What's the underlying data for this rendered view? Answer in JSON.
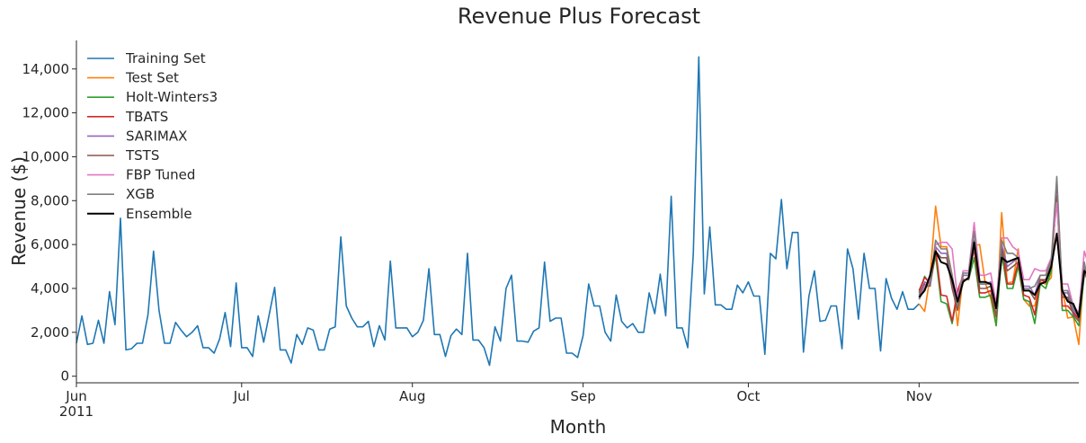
{
  "chart_data": {
    "type": "line",
    "title": "Revenue Plus Forecast",
    "xlabel": "Month",
    "ylabel": "Revenue ($)",
    "x_range": [
      "2011-06-01",
      "2011-11-30"
    ],
    "ylim": [
      -300,
      15300
    ],
    "yticks": [
      0,
      2000,
      4000,
      6000,
      8000,
      10000,
      12000,
      14000
    ],
    "ytick_labels": [
      "0",
      "2,000",
      "4,000",
      "6,000",
      "8,000",
      "10,000",
      "12,000",
      "14,000"
    ],
    "xticks": [
      {
        "date": "2011-06-01",
        "label": "Jun",
        "sublabel": "2011"
      },
      {
        "date": "2011-07-01",
        "label": "Jul",
        "sublabel": ""
      },
      {
        "date": "2011-08-01",
        "label": "Aug",
        "sublabel": ""
      },
      {
        "date": "2011-09-01",
        "label": "Sep",
        "sublabel": ""
      },
      {
        "date": "2011-10-01",
        "label": "Oct",
        "sublabel": ""
      },
      {
        "date": "2011-11-01",
        "label": "Nov",
        "sublabel": ""
      }
    ],
    "grid": false,
    "legend_position": "top-left",
    "series": [
      {
        "name": "Training Set",
        "color": "#1f77b4",
        "start": "2011-06-01",
        "values": [
          1500,
          2750,
          1450,
          1500,
          2550,
          1500,
          3850,
          2350,
          7200,
          1200,
          1250,
          1500,
          1500,
          2800,
          5700,
          3000,
          1500,
          1500,
          2450,
          2100,
          1800,
          2000,
          2300,
          1300,
          1300,
          1050,
          1700,
          2900,
          1350,
          4250,
          1300,
          1300,
          900,
          2750,
          1550,
          2800,
          4050,
          1200,
          1200,
          600,
          1900,
          1450,
          2200,
          2100,
          1200,
          1200,
          2150,
          2250,
          6350,
          3200,
          2650,
          2250,
          2250,
          2500,
          1350,
          2300,
          1650,
          5250,
          2200,
          2200,
          2200,
          1800,
          2000,
          2550,
          4900,
          1900,
          1900,
          900,
          1850,
          2150,
          1900,
          5600,
          1650,
          1650,
          1300,
          500,
          2250,
          1600,
          4000,
          4600,
          1600,
          1600,
          1550,
          2050,
          2200,
          5200,
          2500,
          2650,
          2650,
          1050,
          1050,
          850,
          1850,
          4200,
          3200,
          3200,
          2000,
          1600,
          3700,
          2500,
          2200,
          2400,
          2000,
          2000,
          3800,
          2850,
          4650,
          2750,
          8200,
          2200,
          2200,
          1300,
          5600,
          14550,
          3750,
          6800,
          3250,
          3250,
          3050,
          3050,
          4150,
          3800,
          4300,
          3650,
          3650,
          1000,
          5600,
          5350,
          8050,
          4900,
          6550,
          6550,
          1100,
          3650,
          4800,
          2500,
          2550,
          3200,
          3200,
          1250,
          5800,
          4900,
          2600,
          5600,
          4000,
          4000,
          1150,
          4450,
          3550,
          3050,
          3850,
          3050,
          3050,
          3300
        ]
      },
      {
        "name": "Test Set",
        "color": "#ff7f0e",
        "start": "2011-11-01",
        "values": [
          3300,
          2950,
          4550,
          7750,
          5900,
          5900,
          4600,
          2300,
          4600,
          4600,
          5950,
          6000,
          4250,
          3550,
          2300,
          7450,
          4250,
          4300,
          5800,
          3500,
          3200,
          3200,
          4300,
          4200,
          4500,
          8700,
          4000,
          2650,
          2700,
          1450,
          5000,
          4500,
          4000
        ]
      },
      {
        "name": "Holt-Winters3",
        "color": "#2ca02c",
        "start": "2011-11-01",
        "values": [
          3800,
          4550,
          4200,
          5500,
          3400,
          3300,
          2400,
          3800,
          4400,
          4400,
          5400,
          3600,
          3600,
          3700,
          2300,
          5600,
          4000,
          4000,
          5000,
          3500,
          3400,
          2400,
          4200,
          4000,
          4800,
          8400,
          3000,
          3000,
          2700,
          2300,
          4600,
          4700,
          4500
        ]
      },
      {
        "name": "TBATS",
        "color": "#d62728",
        "start": "2011-11-01",
        "values": [
          3900,
          4500,
          4250,
          5800,
          3700,
          3650,
          2500,
          3900,
          4600,
          4600,
          5800,
          3800,
          3800,
          3900,
          2700,
          6000,
          4200,
          4200,
          5200,
          3700,
          3600,
          2800,
          4400,
          4300,
          5000,
          8500,
          3200,
          3200,
          2900,
          2600,
          4900,
          4600,
          4300
        ]
      },
      {
        "name": "SARIMAX",
        "color": "#9467bd",
        "start": "2011-11-01",
        "values": [
          3700,
          4300,
          4200,
          5900,
          5600,
          5600,
          4200,
          3200,
          4600,
          4600,
          6200,
          4200,
          4200,
          4300,
          3000,
          6000,
          5000,
          5200,
          5400,
          4100,
          4100,
          3700,
          4600,
          4600,
          5300,
          8300,
          3800,
          3800,
          3000,
          2700,
          5000,
          4200,
          4100
        ]
      },
      {
        "name": "TSTS",
        "color": "#8c564b",
        "start": "2011-11-01",
        "values": [
          3600,
          4200,
          4100,
          5700,
          5400,
          5400,
          4000,
          3000,
          4400,
          4400,
          6000,
          4000,
          4000,
          4100,
          2800,
          5800,
          4800,
          5000,
          5200,
          3900,
          3900,
          3500,
          4400,
          4400,
          5100,
          8200,
          3600,
          3600,
          2800,
          2500,
          4800,
          4000,
          4000
        ]
      },
      {
        "name": "FBP Tuned",
        "color": "#e377c2",
        "start": "2011-11-01",
        "values": [
          3500,
          4100,
          4400,
          6000,
          6100,
          6100,
          5800,
          3500,
          4800,
          4800,
          7000,
          4600,
          4600,
          4700,
          3300,
          6300,
          6300,
          5900,
          5700,
          4400,
          4400,
          4900,
          4800,
          4800,
          5400,
          7900,
          4200,
          4200,
          3200,
          2900,
          5700,
          4900,
          5300
        ]
      },
      {
        "name": "XGB",
        "color": "#7f7f7f",
        "start": "2011-11-01",
        "values": [
          3500,
          4000,
          4200,
          6200,
          5800,
          5800,
          4600,
          3200,
          4700,
          4700,
          6600,
          4200,
          4200,
          4200,
          3000,
          6200,
          5600,
          5600,
          5400,
          4000,
          4000,
          4100,
          4600,
          4600,
          5300,
          9100,
          3900,
          3900,
          3100,
          2800,
          5200,
          3800,
          4600
        ]
      },
      {
        "name": "Ensemble",
        "color": "#000000",
        "start": "2011-11-01",
        "values": [
          3600,
          3900,
          4600,
          5700,
          5200,
          5100,
          4400,
          3400,
          4300,
          4500,
          6100,
          4300,
          4300,
          4200,
          3100,
          5400,
          5200,
          5300,
          5400,
          3900,
          3900,
          3700,
          4200,
          4300,
          5000,
          6500,
          3900,
          3400,
          3300,
          2700,
          4800,
          4500,
          4500
        ]
      }
    ]
  }
}
